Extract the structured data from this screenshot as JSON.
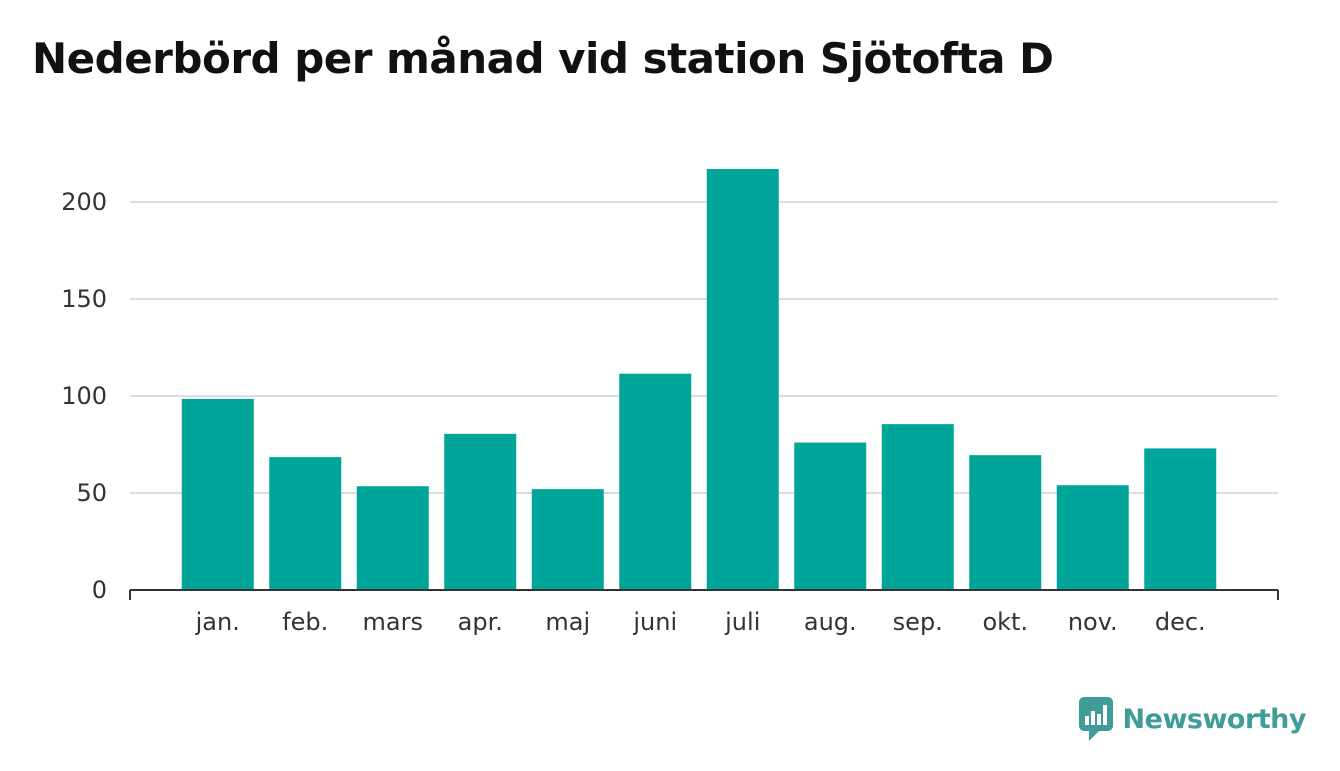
{
  "title": "Nederbörd per månad vid station Sjötofta D",
  "brand": {
    "name": "Newsworthy",
    "icon": "newsworthy-logo-icon",
    "color": "#3f9c98"
  },
  "chart_data": {
    "type": "bar",
    "title": "Nederbörd per månad vid station Sjötofta D",
    "xlabel": "",
    "ylabel": "",
    "categories": [
      "jan.",
      "feb.",
      "mars",
      "apr.",
      "maj",
      "juni",
      "juli",
      "aug.",
      "sep.",
      "okt.",
      "nov.",
      "dec."
    ],
    "values": [
      98.5,
      68.5,
      53.5,
      80.5,
      52,
      111.5,
      217,
      76,
      85.5,
      69.5,
      54,
      73
    ],
    "ylim": [
      0,
      230
    ],
    "yticks": [
      0,
      50,
      100,
      150,
      200
    ],
    "grid": true,
    "legend": "none",
    "bar_color": "#00a59a"
  }
}
